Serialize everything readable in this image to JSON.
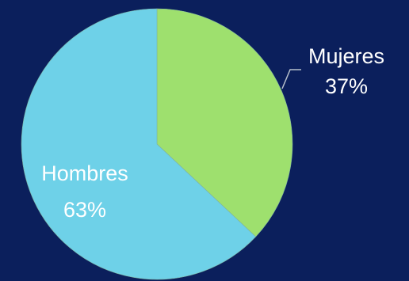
{
  "colors": {
    "background": "#0b1f5c",
    "label_text": "#ffffff",
    "leader_line": "#b8c0cc"
  },
  "chart_data": {
    "type": "pie",
    "title": "",
    "categories": [
      "Mujeres",
      "Hombres"
    ],
    "values": [
      37,
      63
    ],
    "value_labels": [
      "37%",
      "63%"
    ],
    "colors": [
      "#9ee06e",
      "#6ed1e8"
    ],
    "start_angle": "12 o'clock",
    "direction": "clockwise",
    "legend": "none"
  }
}
